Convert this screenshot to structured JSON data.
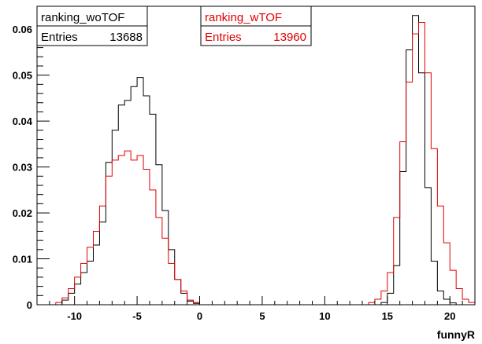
{
  "chart_data": {
    "type": "histogram",
    "xlabel": "funnyR",
    "ylabel": "",
    "xlim": [
      -13,
      22
    ],
    "ylim": [
      0,
      0.065
    ],
    "bin_width": 0.5,
    "x_ticks": [
      -10,
      -5,
      0,
      5,
      10,
      15,
      20
    ],
    "x_tick_labels": [
      "-10",
      "-5",
      "0",
      "5",
      "10",
      "15",
      "20"
    ],
    "y_ticks": [
      0,
      0.01,
      0.02,
      0.03,
      0.04,
      0.05,
      0.06
    ],
    "y_tick_labels": [
      "0",
      "0.01",
      "0.02",
      "0.03",
      "0.04",
      "0.05",
      "0.06"
    ],
    "grid": false,
    "series": [
      {
        "name": "ranking_woTOF",
        "color": "#000000",
        "stats": {
          "label": "Entries",
          "value": "13688"
        },
        "bins": [
          [
            -11,
            0.001
          ],
          [
            -10.5,
            0.0025
          ],
          [
            -10,
            0.0045
          ],
          [
            -9.5,
            0.007
          ],
          [
            -9,
            0.0095
          ],
          [
            -8.5,
            0.013
          ],
          [
            -8,
            0.018
          ],
          [
            -7.5,
            0.031
          ],
          [
            -7,
            0.038
          ],
          [
            -6.5,
            0.0435
          ],
          [
            -6,
            0.0445
          ],
          [
            -5.5,
            0.0475
          ],
          [
            -5,
            0.0495
          ],
          [
            -4.5,
            0.0455
          ],
          [
            -4,
            0.0415
          ],
          [
            -3.5,
            0.0305
          ],
          [
            -3,
            0.0205
          ],
          [
            -2.5,
            0.012
          ],
          [
            -2,
            0.0055
          ],
          [
            -1.5,
            0.0025
          ],
          [
            -1,
            0.0008
          ],
          [
            -0.5,
            0.0003
          ],
          [
            14.5,
            0.0005
          ],
          [
            15,
            0.0025
          ],
          [
            15.5,
            0.0085
          ],
          [
            16,
            0.029
          ],
          [
            16.5,
            0.0555
          ],
          [
            17,
            0.063
          ],
          [
            17.5,
            0.0505
          ],
          [
            18,
            0.0255
          ],
          [
            18.5,
            0.0095
          ],
          [
            19,
            0.003
          ],
          [
            19.5,
            0.0012
          ],
          [
            20,
            0.0004
          ]
        ]
      },
      {
        "name": "ranking_wTOF",
        "color": "#e00000",
        "stats": {
          "label": "Entries",
          "value": "13960"
        },
        "bins": [
          [
            -11.5,
            0.0005
          ],
          [
            -11,
            0.0015
          ],
          [
            -10.5,
            0.0035
          ],
          [
            -10,
            0.006
          ],
          [
            -9.5,
            0.009
          ],
          [
            -9,
            0.0125
          ],
          [
            -8.5,
            0.016
          ],
          [
            -8,
            0.0215
          ],
          [
            -7.5,
            0.028
          ],
          [
            -7,
            0.0315
          ],
          [
            -6.5,
            0.0325
          ],
          [
            -6,
            0.0335
          ],
          [
            -5.5,
            0.0315
          ],
          [
            -5,
            0.0325
          ],
          [
            -4.5,
            0.0295
          ],
          [
            -4,
            0.025
          ],
          [
            -3.5,
            0.019
          ],
          [
            -3,
            0.0145
          ],
          [
            -2.5,
            0.009
          ],
          [
            -2,
            0.0055
          ],
          [
            -1.5,
            0.003
          ],
          [
            -1,
            0.001
          ],
          [
            -0.5,
            0.0005
          ],
          [
            13.5,
            0.0005
          ],
          [
            14,
            0.0012
          ],
          [
            14.5,
            0.003
          ],
          [
            15,
            0.007
          ],
          [
            15.5,
            0.019
          ],
          [
            16,
            0.0355
          ],
          [
            16.5,
            0.0485
          ],
          [
            17,
            0.059
          ],
          [
            17.5,
            0.0615
          ],
          [
            18,
            0.0505
          ],
          [
            18.5,
            0.034
          ],
          [
            19,
            0.0215
          ],
          [
            19.5,
            0.0135
          ],
          [
            20,
            0.0075
          ],
          [
            20.5,
            0.0035
          ],
          [
            21,
            0.0012
          ],
          [
            21.5,
            0.0005
          ]
        ]
      }
    ]
  }
}
